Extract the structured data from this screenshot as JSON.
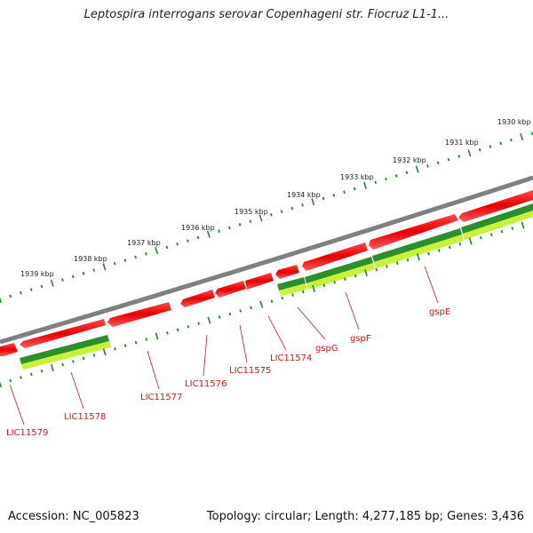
{
  "title": "Leptospira interrogans serovar Copenhageni str. Fiocruz L1-1...",
  "footer": {
    "accession": "Accession: NC_005823",
    "summary": "Topology: circular; Length: 4,277,185 bp; Genes: 3,436"
  },
  "colors": {
    "forward_gene": "#e60000",
    "reverse_gene_dark": "#228b22",
    "reverse_gene_light": "#ccff33",
    "backbone": "#7a7a7a",
    "ticks": "#1f8c1f",
    "labels": "#d11111"
  },
  "ruler": {
    "unit": "kbp",
    "ticks": [
      "1939 kbp",
      "1938 kbp",
      "1937 kbp",
      "1936 kbp",
      "1935 kbp",
      "1934 kbp",
      "1933 kbp",
      "1932 kbp",
      "1931 kbp",
      "1930 kbp"
    ]
  },
  "gene_labels": [
    "LIC11579",
    "LIC11578",
    "LIC11577",
    "LIC11576",
    "LIC11575",
    "LIC11574",
    "gspG",
    "gspF",
    "gspE"
  ]
}
